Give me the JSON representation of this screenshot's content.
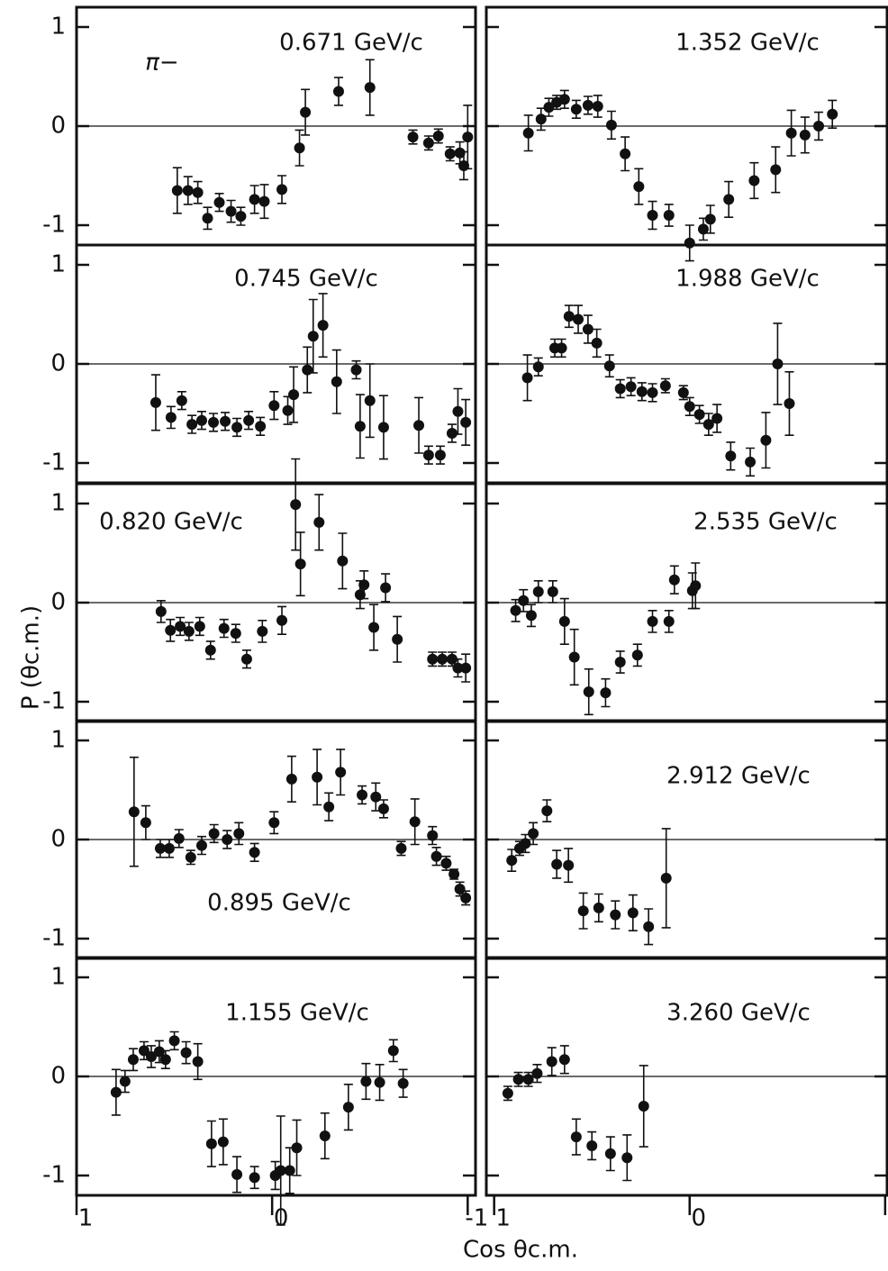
{
  "chart_data": [
    {
      "type": "scatter",
      "title": "0.671 GeV/c",
      "annotation": "π−",
      "xlim": [
        1,
        -1.04
      ],
      "ylim": [
        -1.2,
        1.2
      ],
      "yticks": [
        -1,
        0,
        1
      ],
      "x": [
        0.485,
        0.43,
        0.38,
        0.33,
        0.27,
        0.21,
        0.16,
        0.09,
        0.04,
        -0.05,
        -0.14,
        -0.17,
        -0.34,
        -0.5,
        -0.72,
        -0.8,
        -0.85,
        -0.91,
        -0.96,
        -0.98,
        -1.0
      ],
      "values": [
        -0.65,
        -0.65,
        -0.67,
        -0.93,
        -0.77,
        -0.86,
        -0.91,
        -0.74,
        -0.76,
        -0.64,
        -0.22,
        0.14,
        0.35,
        0.39,
        -0.11,
        -0.17,
        -0.1,
        -0.28,
        -0.27,
        -0.4,
        -0.11
      ],
      "errors": [
        0.23,
        0.14,
        0.11,
        0.11,
        0.09,
        0.11,
        0.09,
        0.14,
        0.17,
        0.14,
        0.18,
        0.23,
        0.14,
        0.28,
        0.07,
        0.07,
        0.07,
        0.07,
        0.11,
        0.14,
        0.32
      ]
    },
    {
      "type": "scatter",
      "title": "0.745 GeV/c",
      "xlim": [
        1,
        -1.04
      ],
      "ylim": [
        -1.2,
        1.2
      ],
      "yticks": [
        -1,
        0,
        1
      ],
      "x": [
        0.595,
        0.517,
        0.462,
        0.41,
        0.36,
        0.3,
        0.24,
        0.18,
        0.12,
        0.06,
        -0.01,
        -0.08,
        -0.11,
        -0.18,
        -0.21,
        -0.26,
        -0.33,
        -0.43,
        -0.45,
        -0.5,
        -0.57,
        -0.75,
        -0.8,
        -0.86,
        -0.92,
        -0.95,
        -0.99
      ],
      "values": [
        -0.39,
        -0.54,
        -0.37,
        -0.61,
        -0.57,
        -0.59,
        -0.58,
        -0.64,
        -0.57,
        -0.63,
        -0.42,
        -0.47,
        -0.31,
        -0.06,
        0.28,
        0.39,
        -0.18,
        -0.06,
        -0.63,
        -0.37,
        -0.64,
        -0.62,
        -0.92,
        -0.92,
        -0.7,
        -0.48,
        -0.59
      ],
      "errors": [
        0.28,
        0.11,
        0.09,
        0.09,
        0.09,
        0.09,
        0.09,
        0.09,
        0.09,
        0.09,
        0.14,
        0.14,
        0.28,
        0.23,
        0.37,
        0.32,
        0.32,
        0.09,
        0.32,
        0.37,
        0.32,
        0.28,
        0.09,
        0.09,
        0.09,
        0.23,
        0.23
      ]
    },
    {
      "type": "scatter",
      "title": "0.820 GeV/c",
      "xlim": [
        1,
        -1.04
      ],
      "ylim": [
        -1.2,
        1.2
      ],
      "yticks": [
        -1,
        0,
        1
      ],
      "x": [
        0.568,
        0.52,
        0.47,
        0.425,
        0.37,
        0.315,
        0.246,
        0.186,
        0.13,
        0.05,
        -0.05,
        -0.12,
        -0.145,
        -0.24,
        -0.36,
        -0.45,
        -0.47,
        -0.52,
        -0.58,
        -0.64,
        -0.82,
        -0.87,
        -0.92,
        -0.95,
        -0.99
      ],
      "values": [
        -0.09,
        -0.28,
        -0.24,
        -0.29,
        -0.24,
        -0.48,
        -0.26,
        -0.31,
        -0.57,
        -0.29,
        -0.18,
        0.99,
        0.39,
        0.81,
        0.42,
        0.08,
        0.18,
        -0.25,
        0.15,
        -0.37,
        -0.57,
        -0.57,
        -0.57,
        -0.66,
        -0.66
      ],
      "errors": [
        0.11,
        0.11,
        0.09,
        0.09,
        0.09,
        0.09,
        0.09,
        0.09,
        0.09,
        0.11,
        0.14,
        0.46,
        0.32,
        0.28,
        0.28,
        0.14,
        0.14,
        0.23,
        0.14,
        0.23,
        0.07,
        0.07,
        0.07,
        0.09,
        0.14
      ]
    },
    {
      "type": "scatter",
      "title": "0.895 GeV/c",
      "xlim": [
        1,
        -1.04
      ],
      "ylim": [
        -1.2,
        1.2
      ],
      "yticks": [
        -1,
        0,
        1
      ],
      "x": [
        0.706,
        0.646,
        0.572,
        0.526,
        0.476,
        0.416,
        0.36,
        0.297,
        0.23,
        0.17,
        0.09,
        -0.01,
        -0.1,
        -0.23,
        -0.29,
        -0.35,
        -0.46,
        -0.53,
        -0.57,
        -0.66,
        -0.73,
        -0.82,
        -0.84,
        -0.89,
        -0.93,
        -0.96,
        -0.99
      ],
      "values": [
        0.28,
        0.17,
        -0.09,
        -0.09,
        0.01,
        -0.18,
        -0.06,
        0.06,
        0,
        0.06,
        -0.13,
        0.17,
        0.61,
        0.63,
        0.33,
        0.68,
        0.45,
        0.43,
        0.31,
        -0.09,
        0.18,
        0.04,
        -0.17,
        -0.24,
        -0.35,
        -0.5,
        -0.59
      ],
      "errors": [
        0.55,
        0.17,
        0.09,
        0.09,
        0.09,
        0.07,
        0.09,
        0.09,
        0.09,
        0.11,
        0.09,
        0.11,
        0.23,
        0.28,
        0.14,
        0.23,
        0.09,
        0.14,
        0.09,
        0.07,
        0.23,
        0.09,
        0.09,
        0.07,
        0.05,
        0.07,
        0.07
      ]
    },
    {
      "type": "scatter",
      "title": "1.155 GeV/c",
      "xlim": [
        1,
        -1.04
      ],
      "ylim": [
        -1.2,
        1.2
      ],
      "yticks": [
        -1,
        0,
        1
      ],
      "xticks": [
        1,
        0,
        -1
      ],
      "x": [
        0.798,
        0.752,
        0.71,
        0.655,
        0.618,
        0.577,
        0.545,
        0.5,
        0.44,
        0.38,
        0.31,
        0.25,
        0.18,
        0.09,
        -0.016,
        -0.044,
        -0.09,
        -0.126,
        -0.27,
        -0.39,
        -0.48,
        -0.55,
        -0.62,
        -0.67
      ],
      "values": [
        -0.16,
        -0.05,
        0.17,
        0.26,
        0.2,
        0.25,
        0.17,
        0.36,
        0.24,
        0.15,
        -0.68,
        -0.66,
        -0.99,
        -1.02,
        -1.0,
        -0.95,
        -0.95,
        -0.72,
        -0.6,
        -0.31,
        -0.05,
        -0.06,
        0.26,
        -0.07
      ],
      "errors": [
        0.23,
        0.11,
        0.11,
        0.09,
        0.11,
        0.11,
        0.09,
        0.09,
        0.11,
        0.18,
        0.23,
        0.23,
        0.18,
        0.11,
        0.14,
        0.55,
        0.23,
        0.28,
        0.23,
        0.23,
        0.18,
        0.18,
        0.11,
        0.14
      ]
    },
    {
      "type": "scatter",
      "title": "1.352 GeV/c",
      "xlim": [
        1.04,
        -1.01
      ],
      "ylim": [
        -1.2,
        1.2
      ],
      "x": [
        0.825,
        0.76,
        0.72,
        0.68,
        0.64,
        0.58,
        0.52,
        0.47,
        0.4,
        0.33,
        0.26,
        0.19,
        0.106,
        0.0,
        -0.07,
        -0.106,
        -0.2,
        -0.33,
        -0.44,
        -0.52,
        -0.59,
        -0.66,
        -0.73
      ],
      "values": [
        -0.07,
        0.07,
        0.19,
        0.24,
        0.27,
        0.17,
        0.21,
        0.2,
        0.01,
        -0.28,
        -0.61,
        -0.9,
        -0.9,
        -1.18,
        -1.04,
        -0.94,
        -0.74,
        -0.55,
        -0.44,
        -0.07,
        -0.09,
        0,
        0.12
      ],
      "errors": [
        0.18,
        0.11,
        0.09,
        0.07,
        0.09,
        0.09,
        0.09,
        0.11,
        0.14,
        0.17,
        0.18,
        0.14,
        0.11,
        0.18,
        0.11,
        0.14,
        0.18,
        0.18,
        0.23,
        0.23,
        0.18,
        0.14,
        0.14
      ]
    },
    {
      "type": "scatter",
      "title": "1.988 GeV/c",
      "xlim": [
        1.04,
        -1.01
      ],
      "ylim": [
        -1.2,
        1.2
      ],
      "x": [
        0.83,
        0.774,
        0.69,
        0.655,
        0.617,
        0.57,
        0.52,
        0.475,
        0.41,
        0.355,
        0.3,
        0.244,
        0.19,
        0.124,
        0.032,
        0.0,
        -0.05,
        -0.097,
        -0.14,
        -0.21,
        -0.31,
        -0.39,
        -0.45,
        -0.51
      ],
      "values": [
        -0.14,
        -0.03,
        0.16,
        0.16,
        0.48,
        0.45,
        0.35,
        0.21,
        -0.02,
        -0.25,
        -0.23,
        -0.28,
        -0.29,
        -0.22,
        -0.29,
        -0.43,
        -0.51,
        -0.61,
        -0.55,
        -0.93,
        -0.99,
        -0.77,
        0.0,
        -0.4
      ],
      "errors": [
        0.23,
        0.09,
        0.09,
        0.09,
        0.11,
        0.14,
        0.14,
        0.14,
        0.11,
        0.09,
        0.09,
        0.09,
        0.09,
        0.07,
        0.07,
        0.09,
        0.09,
        0.11,
        0.14,
        0.14,
        0.14,
        0.28,
        0.41,
        0.32
      ]
    },
    {
      "type": "scatter",
      "title": "2.535 GeV/c",
      "xlim": [
        1.04,
        -1.01
      ],
      "ylim": [
        -1.2,
        1.2
      ],
      "x": [
        0.89,
        0.85,
        0.81,
        0.774,
        0.7,
        0.64,
        0.59,
        0.516,
        0.43,
        0.355,
        0.267,
        0.19,
        0.106,
        0.078,
        -0.014,
        -0.03
      ],
      "values": [
        -0.08,
        0.02,
        -0.13,
        0.11,
        0.11,
        -0.19,
        -0.55,
        -0.9,
        -0.91,
        -0.6,
        -0.53,
        -0.19,
        -0.19,
        0.23,
        0.12,
        0.17
      ],
      "errors": [
        0.11,
        0.11,
        0.11,
        0.11,
        0.11,
        0.23,
        0.28,
        0.23,
        0.14,
        0.11,
        0.11,
        0.11,
        0.11,
        0.14,
        0.18,
        0.23
      ]
    },
    {
      "type": "scatter",
      "title": "2.912 GeV/c",
      "xlim": [
        1.04,
        -1.01
      ],
      "ylim": [
        -1.2,
        1.2
      ],
      "x": [
        0.91,
        0.87,
        0.84,
        0.8,
        0.73,
        0.68,
        0.62,
        0.544,
        0.465,
        0.38,
        0.29,
        0.21,
        0.12
      ],
      "values": [
        -0.21,
        -0.09,
        -0.04,
        0.06,
        0.29,
        -0.25,
        -0.26,
        -0.72,
        -0.69,
        -0.76,
        -0.74,
        -0.88,
        -0.39
      ],
      "errors": [
        0.11,
        0.07,
        0.09,
        0.11,
        0.11,
        0.14,
        0.17,
        0.18,
        0.14,
        0.14,
        0.18,
        0.18,
        0.5
      ]
    },
    {
      "type": "scatter",
      "title": "3.260 GeV/c",
      "xlim": [
        1.04,
        -1.01
      ],
      "ylim": [
        -1.2,
        1.2
      ],
      "xticks": [
        1,
        0,
        {
          "value": -1,
          "label": "-"
        }
      ],
      "x": [
        0.93,
        0.876,
        0.825,
        0.78,
        0.705,
        0.64,
        0.58,
        0.5,
        0.405,
        0.32,
        0.235
      ],
      "values": [
        -0.17,
        -0.03,
        -0.03,
        0.03,
        0.15,
        0.17,
        -0.61,
        -0.7,
        -0.78,
        -0.82,
        -0.3
      ],
      "errors": [
        0.07,
        0.07,
        0.07,
        0.09,
        0.14,
        0.14,
        0.18,
        0.14,
        0.17,
        0.23,
        0.41
      ]
    }
  ],
  "y_label": "P (θc.m.)",
  "x_label": "Cos θc.m."
}
